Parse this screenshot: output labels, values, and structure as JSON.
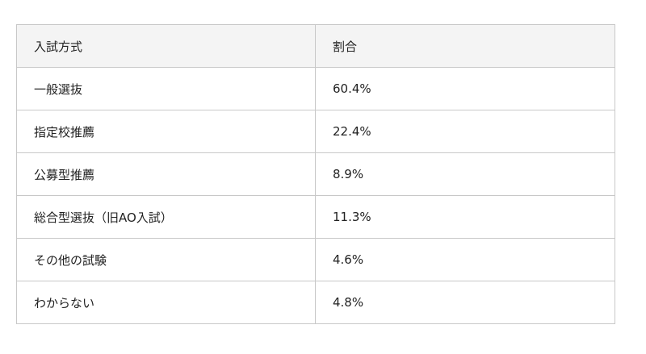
{
  "table": {
    "header": [
      "入試方式",
      "割合"
    ],
    "rows": [
      [
        "一般選抜",
        "60.4%"
      ],
      [
        "指定校推薦",
        "22.4%"
      ],
      [
        "公募型推薦",
        "8.9%"
      ],
      [
        "総合型選抜（旧AO入試）",
        "11.3%"
      ],
      [
        "その他の試験",
        "4.6%"
      ],
      [
        "わからない",
        "4.8%"
      ]
    ]
  }
}
